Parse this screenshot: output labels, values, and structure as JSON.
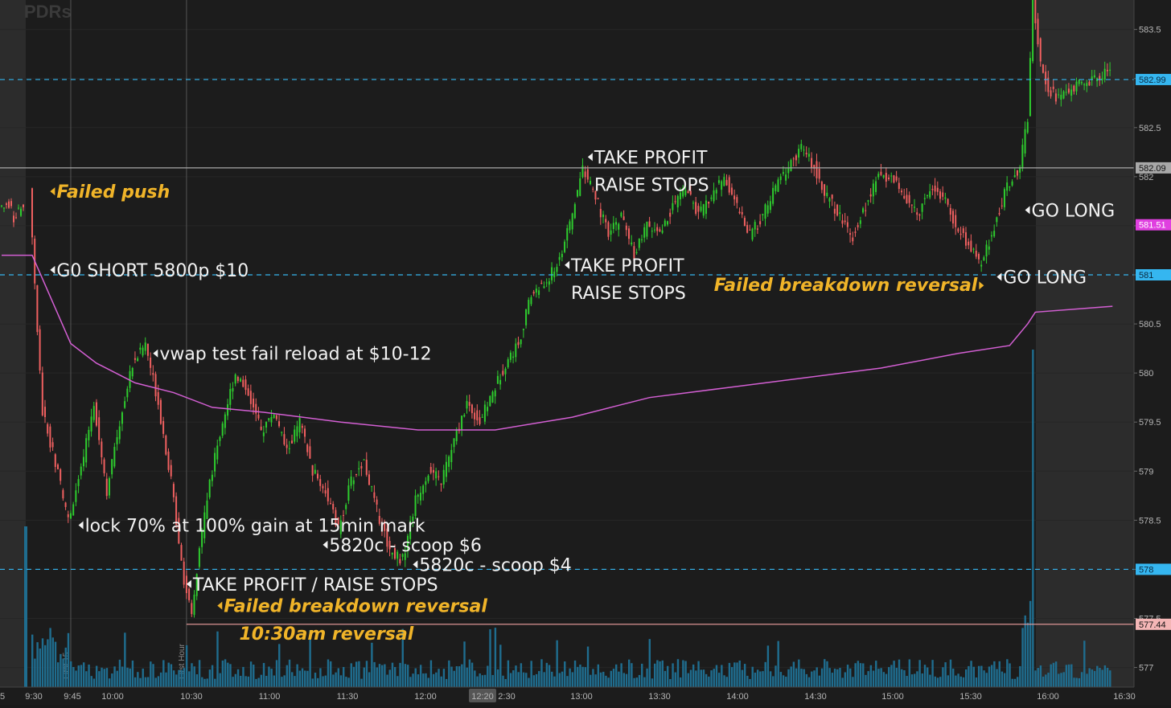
{
  "watermark": "PDRs",
  "chart_data": {
    "type": "candlestick",
    "ylim": [
      576.8,
      583.8
    ],
    "x_ticks": [
      "5",
      "9:30",
      "9:45",
      "10:00",
      "10:30",
      "11:00",
      "11:30",
      "12:00",
      "12:20",
      "2:30",
      "13:00",
      "13:30",
      "14:00",
      "14:30",
      "15:00",
      "15:30",
      "16:00",
      "16:30"
    ],
    "y_ticks": [
      "583.5",
      "583",
      "582.5",
      "582",
      "581.5",
      "581",
      "580.5",
      "580",
      "579.5",
      "579",
      "578.5",
      "578",
      "577.5",
      "577"
    ],
    "price_tags": [
      {
        "label": "582.99",
        "value": 582.99,
        "color": "#35b6f0",
        "style": "dashed"
      },
      {
        "label": "582.09",
        "value": 582.09,
        "color": "#a8a8a8",
        "style": "solid"
      },
      {
        "label": "581.51",
        "value": 581.51,
        "color": "#e040e0",
        "style": "none"
      },
      {
        "label": "581",
        "value": 581.0,
        "color": "#35b6f0",
        "style": "dashed"
      },
      {
        "label": "578",
        "value": 578.0,
        "color": "#35b6f0",
        "style": "dashed"
      },
      {
        "label": "577.44",
        "value": 577.44,
        "color": "#f0a0a0",
        "style": "solid"
      }
    ],
    "vertical_markers": [
      "First 15",
      "First Hour"
    ],
    "price_path": [
      [
        "09:30",
        581.9
      ],
      [
        "09:32",
        580.9
      ],
      [
        "09:35",
        579.6
      ],
      [
        "09:40",
        579.1
      ],
      [
        "09:45",
        578.5
      ],
      [
        "09:50",
        579.0
      ],
      [
        "09:55",
        579.7
      ],
      [
        "10:00",
        578.8
      ],
      [
        "10:05",
        579.5
      ],
      [
        "10:10",
        580.1
      ],
      [
        "10:15",
        580.3
      ],
      [
        "10:20",
        579.7
      ],
      [
        "10:25",
        578.9
      ],
      [
        "10:30",
        577.9
      ],
      [
        "10:33",
        577.5
      ],
      [
        "10:36",
        578.2
      ],
      [
        "10:40",
        578.9
      ],
      [
        "10:45",
        579.5
      ],
      [
        "10:50",
        580.0
      ],
      [
        "10:55",
        579.8
      ],
      [
        "11:00",
        579.4
      ],
      [
        "11:05",
        579.6
      ],
      [
        "11:10",
        579.2
      ],
      [
        "11:15",
        579.5
      ],
      [
        "11:20",
        579.0
      ],
      [
        "11:25",
        578.8
      ],
      [
        "11:30",
        578.4
      ],
      [
        "11:35",
        578.9
      ],
      [
        "11:40",
        579.1
      ],
      [
        "11:45",
        578.6
      ],
      [
        "11:50",
        578.2
      ],
      [
        "11:55",
        578.1
      ],
      [
        "12:00",
        578.7
      ],
      [
        "12:05",
        579.0
      ],
      [
        "12:10",
        578.9
      ],
      [
        "12:15",
        579.3
      ],
      [
        "12:20",
        579.7
      ],
      [
        "12:25",
        579.5
      ],
      [
        "12:30",
        579.8
      ],
      [
        "12:35",
        580.1
      ],
      [
        "12:40",
        580.3
      ],
      [
        "12:45",
        580.8
      ],
      [
        "12:50",
        580.9
      ],
      [
        "12:55",
        581.1
      ],
      [
        "13:00",
        581.5
      ],
      [
        "13:05",
        582.1
      ],
      [
        "13:10",
        581.8
      ],
      [
        "13:15",
        581.4
      ],
      [
        "13:20",
        581.6
      ],
      [
        "13:25",
        581.2
      ],
      [
        "13:30",
        581.5
      ],
      [
        "13:35",
        581.4
      ],
      [
        "13:40",
        581.7
      ],
      [
        "13:45",
        581.9
      ],
      [
        "13:50",
        581.6
      ],
      [
        "13:55",
        581.8
      ],
      [
        "14:00",
        582.0
      ],
      [
        "14:05",
        581.7
      ],
      [
        "14:10",
        581.4
      ],
      [
        "14:15",
        581.6
      ],
      [
        "14:20",
        581.9
      ],
      [
        "14:25",
        582.1
      ],
      [
        "14:30",
        582.3
      ],
      [
        "14:35",
        582.1
      ],
      [
        "14:40",
        581.8
      ],
      [
        "14:45",
        581.6
      ],
      [
        "14:50",
        581.4
      ],
      [
        "14:55",
        581.7
      ],
      [
        "15:00",
        582.0
      ],
      [
        "15:05",
        582.0
      ],
      [
        "15:10",
        581.8
      ],
      [
        "15:15",
        581.6
      ],
      [
        "15:20",
        581.9
      ],
      [
        "15:25",
        581.8
      ],
      [
        "15:30",
        581.5
      ],
      [
        "15:35",
        581.3
      ],
      [
        "15:40",
        581.1
      ],
      [
        "15:45",
        581.5
      ],
      [
        "15:50",
        581.9
      ],
      [
        "15:55",
        582.1
      ],
      [
        "15:58",
        582.6
      ],
      [
        "16:00",
        583.8
      ],
      [
        "16:03",
        583.2
      ],
      [
        "16:06",
        582.9
      ],
      [
        "16:10",
        582.8
      ],
      [
        "16:15",
        582.9
      ],
      [
        "16:20",
        582.95
      ],
      [
        "16:25",
        583.0
      ],
      [
        "16:30",
        583.1
      ]
    ],
    "vwap_path": [
      [
        "09:30",
        581.2
      ],
      [
        "09:35",
        580.9
      ],
      [
        "09:40",
        580.6
      ],
      [
        "09:45",
        580.3
      ],
      [
        "09:55",
        580.1
      ],
      [
        "10:10",
        579.9
      ],
      [
        "10:25",
        579.8
      ],
      [
        "10:40",
        579.65
      ],
      [
        "11:00",
        579.6
      ],
      [
        "11:30",
        579.5
      ],
      [
        "12:00",
        579.42
      ],
      [
        "12:30",
        579.42
      ],
      [
        "13:00",
        579.55
      ],
      [
        "13:30",
        579.75
      ],
      [
        "14:00",
        579.85
      ],
      [
        "14:30",
        579.95
      ],
      [
        "15:00",
        580.05
      ],
      [
        "15:30",
        580.2
      ],
      [
        "15:50",
        580.28
      ],
      [
        "15:57",
        580.5
      ],
      [
        "16:00",
        580.62
      ],
      [
        "16:30",
        580.68
      ]
    ],
    "annotations": [
      {
        "text": "Failed push",
        "time": "09:37",
        "price": 581.85,
        "style": "highlight"
      },
      {
        "text": "G0 SHORT 5800p $10",
        "time": "09:37",
        "price": 581.05,
        "style": "plain"
      },
      {
        "text": "vwap test fail reload at $10-12",
        "time": "10:17",
        "price": 580.2,
        "style": "plain"
      },
      {
        "text": "lock 70% at 100% gain at 15min mark",
        "time": "09:48",
        "price": 578.45,
        "style": "plain"
      },
      {
        "text": "5820c - scoop $6",
        "time": "11:23",
        "price": 578.25,
        "style": "plain"
      },
      {
        "text": "5820c - scoop $4",
        "time": "11:58",
        "price": 578.05,
        "style": "plain"
      },
      {
        "text": "TAKE PROFIT / RAISE STOPS",
        "time": "10:30",
        "price": 577.85,
        "style": "plain"
      },
      {
        "text": "Failed breakdown reversal",
        "time": "10:42",
        "price": 577.63,
        "style": "highlight"
      },
      {
        "text": "10:30am reversal",
        "time": "10:48",
        "price": 577.35,
        "style": "highlight-noarrow"
      },
      {
        "text": "TAKE PROFIT",
        "line2": "RAISE STOPS",
        "time": "13:06",
        "price": 582.2,
        "style": "plain"
      },
      {
        "text": "TAKE PROFIT",
        "line2": "RAISE STOPS",
        "time": "12:57",
        "price": 581.1,
        "style": "plain"
      },
      {
        "text": "Failed breakdown reversal",
        "time": "15:40",
        "price": 580.9,
        "style": "highlight-right"
      },
      {
        "text": "GO LONG",
        "time": "15:45",
        "price": 580.98,
        "style": "plain"
      },
      {
        "text": "GO LONG",
        "time": "15:56",
        "price": 581.66,
        "style": "plain"
      }
    ]
  }
}
